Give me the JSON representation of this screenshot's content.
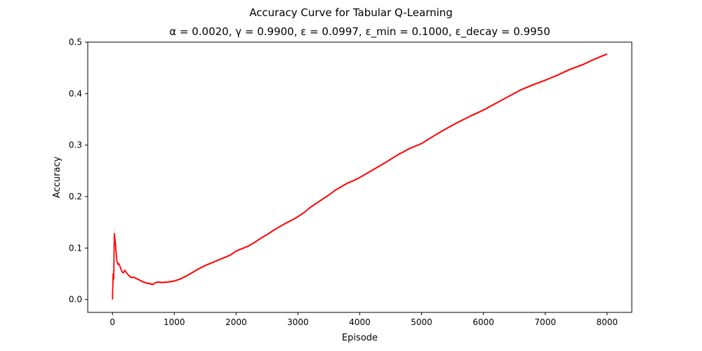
{
  "figure": {
    "suptitle": "Accuracy Curve for Tabular Q-Learning",
    "subtitle": "α = 0.0020, γ = 0.9900, ε = 0.0997, ε_min = 0.1000, ε_decay = 0.9950"
  },
  "chart_data": {
    "type": "line",
    "title": "α = 0.0020, γ = 0.9900, ε = 0.0997, ε_min = 0.1000, ε_decay = 0.9950",
    "suptitle": "Accuracy Curve for Tabular Q-Learning",
    "xlabel": "Episode",
    "ylabel": "Accuracy",
    "xlim": [
      -400,
      8400
    ],
    "ylim": [
      -0.025,
      0.5
    ],
    "xticks": [
      0,
      1000,
      2000,
      3000,
      4000,
      5000,
      6000,
      7000,
      8000
    ],
    "yticks": [
      0.0,
      0.1,
      0.2,
      0.3,
      0.4,
      0.5
    ],
    "xtick_labels": [
      "0",
      "1000",
      "2000",
      "3000",
      "4000",
      "5000",
      "6000",
      "7000",
      "8000"
    ],
    "ytick_labels": [
      "0.0",
      "0.1",
      "0.2",
      "0.3",
      "0.4",
      "0.5"
    ],
    "grid": false,
    "line_color": "#ff0000",
    "band_color": "#f4a6a6",
    "series": [
      {
        "x": [
          0,
          10,
          20,
          30,
          40,
          50,
          60,
          70,
          80,
          90,
          100,
          120,
          140,
          160,
          180,
          200,
          220,
          240,
          260,
          280,
          300,
          350,
          400,
          450,
          500,
          550,
          600,
          650,
          700,
          750,
          800,
          900,
          1000,
          1100,
          1200,
          1300,
          1400,
          1500,
          1600,
          1700,
          1800,
          1900,
          2000,
          2100,
          2200,
          2300,
          2400,
          2500,
          2600,
          2700,
          2800,
          2900,
          3000,
          3100,
          3200,
          3300,
          3400,
          3500,
          3600,
          3700,
          3800,
          3900,
          4000,
          4200,
          4400,
          4600,
          4800,
          5000,
          5200,
          5400,
          5600,
          5800,
          6000,
          6200,
          6400,
          6600,
          6800,
          7000,
          7200,
          7400,
          7600,
          7800,
          8000
        ],
        "y": [
          0.0,
          0.05,
          0.04,
          0.128,
          0.118,
          0.105,
          0.09,
          0.075,
          0.072,
          0.068,
          0.07,
          0.065,
          0.058,
          0.053,
          0.052,
          0.057,
          0.053,
          0.05,
          0.047,
          0.045,
          0.043,
          0.043,
          0.04,
          0.037,
          0.034,
          0.032,
          0.031,
          0.029,
          0.033,
          0.034,
          0.033,
          0.034,
          0.036,
          0.04,
          0.046,
          0.053,
          0.06,
          0.066,
          0.071,
          0.076,
          0.081,
          0.086,
          0.094,
          0.099,
          0.104,
          0.111,
          0.119,
          0.126,
          0.134,
          0.141,
          0.148,
          0.154,
          0.161,
          0.169,
          0.179,
          0.187,
          0.195,
          0.203,
          0.212,
          0.219,
          0.226,
          0.231,
          0.237,
          0.251,
          0.265,
          0.28,
          0.293,
          0.303,
          0.318,
          0.332,
          0.345,
          0.357,
          0.368,
          0.381,
          0.394,
          0.407,
          0.417,
          0.426,
          0.436,
          0.447,
          0.456,
          0.467,
          0.477
        ],
        "band_upper": [
          0.0,
          0.058,
          0.05,
          0.143,
          0.125,
          0.11,
          0.093,
          0.078,
          0.074,
          0.07,
          0.072,
          0.067,
          0.06,
          0.055,
          0.054,
          0.059,
          0.055,
          0.052,
          0.049,
          0.047,
          0.045,
          0.045,
          0.042,
          0.039,
          0.036,
          0.034,
          0.033,
          0.031,
          0.035,
          0.036,
          0.035,
          0.036,
          0.038,
          0.042,
          0.048,
          0.055,
          0.062,
          0.068,
          0.073,
          0.078,
          0.083,
          0.088,
          0.096,
          0.101,
          0.106,
          0.113,
          0.121,
          0.128,
          0.136,
          0.143,
          0.15,
          0.156,
          0.163,
          0.171,
          0.181,
          0.189,
          0.197,
          0.205,
          0.214,
          0.221,
          0.228,
          0.233,
          0.239,
          0.253,
          0.267,
          0.282,
          0.295,
          0.305,
          0.32,
          0.334,
          0.347,
          0.359,
          0.37,
          0.383,
          0.396,
          0.409,
          0.419,
          0.428,
          0.438,
          0.449,
          0.458,
          0.469,
          0.479
        ],
        "band_lower": [
          0.0,
          0.042,
          0.032,
          0.113,
          0.111,
          0.1,
          0.087,
          0.072,
          0.07,
          0.066,
          0.068,
          0.063,
          0.056,
          0.051,
          0.05,
          0.055,
          0.051,
          0.048,
          0.045,
          0.043,
          0.041,
          0.041,
          0.038,
          0.035,
          0.032,
          0.03,
          0.029,
          0.027,
          0.031,
          0.032,
          0.031,
          0.032,
          0.034,
          0.038,
          0.044,
          0.051,
          0.058,
          0.064,
          0.069,
          0.074,
          0.079,
          0.084,
          0.092,
          0.097,
          0.102,
          0.109,
          0.117,
          0.124,
          0.132,
          0.139,
          0.146,
          0.152,
          0.159,
          0.167,
          0.177,
          0.185,
          0.193,
          0.201,
          0.21,
          0.217,
          0.224,
          0.229,
          0.235,
          0.249,
          0.263,
          0.278,
          0.291,
          0.301,
          0.316,
          0.33,
          0.343,
          0.355,
          0.366,
          0.379,
          0.392,
          0.405,
          0.415,
          0.424,
          0.434,
          0.445,
          0.454,
          0.465,
          0.475
        ]
      }
    ]
  }
}
